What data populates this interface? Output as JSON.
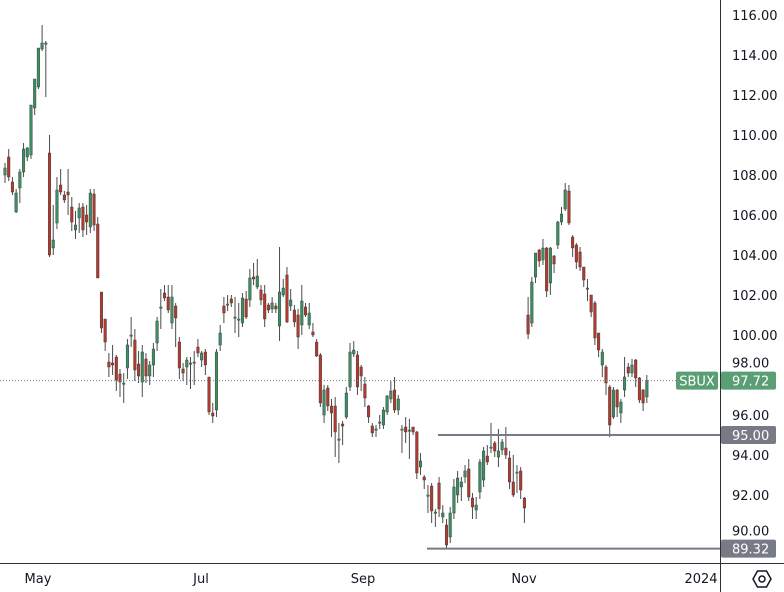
{
  "chart_data": {
    "type": "candlestick",
    "symbol": "SBUX",
    "last_price": "97.72",
    "y_ticks": [
      "116.00",
      "114.00",
      "112.00",
      "110.00",
      "108.00",
      "106.00",
      "104.00",
      "102.00",
      "100.00",
      "98.00",
      "96.00",
      "94.00",
      "92.00",
      "90.00"
    ],
    "ylim": [
      88.9,
      116.75
    ],
    "x_ticks": [
      "May",
      "Jul",
      "Sep",
      "Nov",
      "2024"
    ],
    "grid": false,
    "colors": {
      "up": "#3a8f62",
      "down": "#b03a2e",
      "wick": "#4a4a4a",
      "last_price": "#5a9e74",
      "level": "#787b86"
    },
    "levels": [
      {
        "value": 95.0,
        "label": "95.00"
      },
      {
        "value": 89.32,
        "label": "89.32"
      }
    ],
    "candles_ohlc": [
      [
        108.0,
        108.6,
        107.6,
        108.35
      ],
      [
        108.9,
        109.3,
        107.7,
        107.9
      ],
      [
        107.65,
        107.9,
        107.0,
        107.15
      ],
      [
        106.15,
        107.3,
        106.1,
        107.1
      ],
      [
        107.35,
        108.3,
        106.6,
        108.15
      ],
      [
        108.15,
        109.6,
        107.9,
        109.3
      ],
      [
        108.9,
        109.4,
        108.7,
        109.35
      ],
      [
        109.0,
        111.5,
        108.8,
        111.5
      ],
      [
        111.35,
        112.8,
        111.0,
        112.8
      ],
      [
        112.4,
        114.35,
        112.3,
        114.35
      ],
      [
        114.3,
        115.5,
        114.2,
        114.6
      ],
      [
        114.6,
        114.7,
        111.9,
        114.6
      ],
      [
        109.1,
        110.0,
        103.9,
        104.0
      ],
      [
        104.35,
        106.5,
        104.0,
        104.75
      ],
      [
        105.6,
        107.9,
        105.3,
        107.25
      ],
      [
        107.5,
        108.3,
        107.0,
        107.15
      ],
      [
        107.0,
        107.2,
        106.6,
        106.75
      ],
      [
        107.15,
        108.3,
        106.0,
        107.0
      ],
      [
        106.4,
        106.9,
        105.2,
        105.65
      ],
      [
        105.25,
        106.2,
        104.8,
        105.5
      ],
      [
        105.85,
        106.6,
        105.1,
        106.35
      ],
      [
        106.4,
        106.6,
        104.9,
        105.25
      ],
      [
        106.0,
        106.5,
        105.0,
        105.65
      ],
      [
        105.4,
        107.3,
        105.1,
        107.1
      ],
      [
        107.05,
        107.3,
        105.2,
        105.5
      ],
      [
        105.55,
        105.9,
        102.85,
        102.85
      ],
      [
        102.15,
        102.15,
        100.1,
        100.35
      ],
      [
        100.8,
        100.8,
        99.2,
        99.65
      ],
      [
        98.65,
        99.1,
        97.9,
        98.4
      ],
      [
        98.6,
        99.5,
        98.0,
        98.5
      ],
      [
        98.9,
        99.0,
        97.2,
        97.75
      ],
      [
        98.05,
        98.3,
        96.9,
        97.65
      ],
      [
        97.6,
        98.1,
        96.6,
        97.6
      ],
      [
        98.35,
        99.8,
        97.8,
        99.5
      ],
      [
        100.0,
        100.9,
        99.4,
        100.0
      ],
      [
        99.75,
        100.3,
        97.7,
        98.25
      ],
      [
        98.55,
        99.2,
        97.6,
        97.95
      ],
      [
        97.65,
        99.5,
        96.9,
        99.15
      ],
      [
        98.8,
        99.1,
        97.6,
        97.95
      ],
      [
        97.95,
        98.7,
        97.5,
        98.5
      ],
      [
        98.5,
        99.6,
        97.9,
        99.3
      ],
      [
        99.6,
        100.9,
        99.2,
        100.7
      ],
      [
        101.4,
        102.3,
        100.3,
        101.4
      ],
      [
        102.1,
        102.5,
        101.7,
        101.85
      ],
      [
        101.9,
        102.5,
        101.1,
        101.25
      ],
      [
        100.6,
        102.5,
        100.3,
        101.9
      ],
      [
        101.45,
        101.6,
        99.4,
        100.85
      ],
      [
        99.65,
        99.9,
        97.8,
        98.35
      ],
      [
        98.3,
        98.6,
        97.7,
        98.1
      ],
      [
        98.4,
        98.9,
        97.5,
        98.75
      ],
      [
        98.6,
        98.9,
        97.3,
        98.6
      ],
      [
        98.65,
        99.2,
        97.5,
        98.65
      ],
      [
        99.4,
        99.8,
        98.9,
        99.1
      ],
      [
        98.75,
        99.2,
        98.4,
        99.1
      ],
      [
        99.15,
        99.3,
        98.0,
        98.5
      ],
      [
        97.9,
        97.9,
        96.0,
        96.15
      ],
      [
        96.1,
        96.6,
        95.6,
        95.95
      ],
      [
        96.25,
        99.3,
        95.9,
        99.15
      ],
      [
        99.5,
        100.5,
        99.2,
        100.1
      ],
      [
        101.45,
        101.9,
        100.6,
        101.1
      ],
      [
        101.55,
        102.0,
        101.2,
        101.55
      ],
      [
        101.8,
        102.0,
        101.4,
        101.6
      ],
      [
        100.9,
        101.9,
        100.1,
        100.9
      ],
      [
        100.8,
        101.6,
        99.9,
        100.8
      ],
      [
        100.6,
        102.1,
        100.4,
        101.85
      ],
      [
        101.8,
        102.2,
        100.8,
        100.9
      ],
      [
        101.75,
        103.3,
        101.4,
        102.85
      ],
      [
        102.9,
        103.6,
        102.5,
        102.8
      ],
      [
        102.4,
        103.8,
        102.3,
        102.95
      ],
      [
        102.25,
        102.5,
        101.5,
        101.75
      ],
      [
        102.05,
        102.5,
        100.4,
        100.8
      ],
      [
        101.5,
        101.6,
        101.1,
        101.25
      ],
      [
        101.3,
        101.9,
        101.1,
        101.6
      ],
      [
        101.45,
        101.6,
        101.1,
        101.3
      ],
      [
        100.45,
        104.4,
        99.7,
        102.15
      ],
      [
        102.0,
        102.8,
        101.9,
        102.35
      ],
      [
        103.0,
        103.4,
        100.6,
        100.65
      ],
      [
        101.45,
        102.3,
        101.2,
        101.75
      ],
      [
        101.25,
        101.5,
        100.4,
        100.65
      ],
      [
        101.0,
        101.3,
        99.3,
        99.9
      ],
      [
        100.5,
        102.5,
        100.0,
        101.7
      ],
      [
        101.4,
        101.6,
        100.9,
        101.0
      ],
      [
        100.5,
        101.6,
        100.3,
        101.1
      ],
      [
        100.15,
        100.6,
        99.9,
        100.0
      ],
      [
        99.65,
        99.8,
        98.9,
        98.95
      ],
      [
        99.0,
        99.1,
        96.4,
        96.6
      ],
      [
        96.0,
        97.5,
        95.6,
        97.25
      ],
      [
        97.35,
        97.5,
        96.2,
        96.45
      ],
      [
        96.45,
        96.8,
        94.9,
        96.1
      ],
      [
        96.45,
        96.9,
        93.9,
        95.15
      ],
      [
        94.8,
        95.6,
        93.6,
        94.8
      ],
      [
        95.55,
        95.7,
        94.5,
        95.45
      ],
      [
        95.9,
        97.4,
        95.8,
        97.1
      ],
      [
        97.4,
        99.6,
        97.2,
        99.15
      ],
      [
        99.05,
        99.7,
        98.9,
        99.25
      ],
      [
        99.0,
        99.2,
        97.0,
        97.4
      ],
      [
        98.4,
        98.5,
        97.2,
        97.95
      ],
      [
        97.55,
        97.9,
        96.4,
        96.85
      ],
      [
        96.45,
        96.5,
        95.6,
        95.9
      ],
      [
        95.45,
        95.6,
        94.9,
        95.1
      ],
      [
        95.3,
        95.5,
        94.9,
        95.3
      ],
      [
        95.65,
        96.0,
        95.3,
        95.65
      ],
      [
        95.5,
        96.4,
        95.3,
        96.25
      ],
      [
        96.15,
        97.0,
        96.0,
        96.95
      ],
      [
        96.8,
        97.7,
        96.6,
        97.2
      ],
      [
        97.25,
        97.9,
        96.1,
        96.25
      ],
      [
        96.25,
        97.0,
        96.0,
        96.8
      ],
      [
        95.3,
        95.5,
        94.1,
        95.3
      ],
      [
        95.4,
        95.9,
        94.6,
        95.15
      ],
      [
        95.25,
        95.8,
        93.8,
        95.25
      ],
      [
        95.4,
        95.4,
        95.0,
        95.15
      ],
      [
        95.15,
        95.2,
        92.8,
        93.1
      ],
      [
        93.4,
        94.1,
        93.0,
        93.7
      ],
      [
        92.9,
        93.0,
        92.3,
        92.75
      ],
      [
        92.0,
        92.5,
        91.1,
        92.0
      ],
      [
        92.45,
        92.6,
        90.6,
        91.2
      ],
      [
        91.15,
        91.3,
        90.4,
        91.15
      ],
      [
        92.6,
        92.9,
        90.9,
        91.3
      ],
      [
        90.9,
        91.5,
        90.6,
        91.1
      ],
      [
        90.5,
        90.8,
        89.3,
        89.5
      ],
      [
        89.9,
        91.4,
        89.6,
        91.1
      ],
      [
        91.1,
        92.8,
        90.8,
        92.4
      ],
      [
        92.0,
        93.2,
        91.6,
        92.85
      ],
      [
        92.4,
        92.9,
        91.7,
        92.65
      ],
      [
        92.9,
        93.5,
        92.6,
        93.2
      ],
      [
        93.3,
        93.8,
        91.7,
        91.9
      ],
      [
        91.85,
        92.1,
        90.8,
        91.4
      ],
      [
        91.25,
        91.9,
        90.8,
        91.5
      ],
      [
        92.15,
        93.8,
        91.8,
        93.65
      ],
      [
        92.75,
        94.4,
        92.4,
        94.2
      ],
      [
        93.95,
        94.5,
        93.5,
        93.65
      ],
      [
        94.4,
        95.6,
        94.1,
        94.4
      ],
      [
        94.6,
        94.7,
        93.9,
        94.2
      ],
      [
        93.9,
        95.3,
        93.4,
        94.2
      ],
      [
        94.25,
        94.8,
        94.0,
        94.65
      ],
      [
        94.35,
        95.4,
        93.8,
        94.0
      ],
      [
        93.85,
        94.2,
        92.3,
        92.65
      ],
      [
        92.65,
        94.0,
        91.9,
        92.0
      ],
      [
        93.15,
        93.5,
        92.1,
        93.15
      ],
      [
        93.2,
        93.4,
        91.8,
        92.25
      ],
      [
        91.85,
        91.9,
        90.6,
        91.35
      ],
      [
        101.0,
        101.9,
        99.8,
        100.05
      ],
      [
        100.6,
        102.9,
        100.4,
        102.65
      ],
      [
        102.9,
        104.1,
        102.6,
        104.1
      ],
      [
        104.25,
        104.3,
        103.4,
        103.7
      ],
      [
        103.75,
        104.8,
        103.5,
        104.35
      ],
      [
        104.35,
        104.4,
        101.9,
        102.2
      ],
      [
        102.6,
        104.4,
        102.0,
        104.35
      ],
      [
        103.95,
        104.0,
        103.1,
        103.55
      ],
      [
        104.5,
        105.7,
        104.3,
        105.65
      ],
      [
        105.65,
        106.4,
        105.5,
        106.05
      ],
      [
        106.3,
        107.6,
        106.2,
        107.25
      ],
      [
        107.2,
        107.5,
        105.5,
        105.6
      ],
      [
        104.9,
        105.0,
        103.9,
        104.35
      ],
      [
        104.5,
        104.6,
        103.3,
        103.65
      ],
      [
        104.15,
        104.4,
        103.2,
        103.4
      ],
      [
        103.4,
        103.4,
        102.4,
        102.75
      ],
      [
        102.3,
        102.8,
        101.7,
        102.35
      ],
      [
        102.0,
        102.0,
        100.9,
        101.15
      ],
      [
        101.6,
        101.7,
        99.5,
        99.85
      ],
      [
        100.1,
        100.1,
        98.9,
        99.25
      ],
      [
        98.5,
        99.3,
        97.9,
        99.15
      ],
      [
        98.4,
        98.5,
        97.0,
        97.6
      ],
      [
        97.4,
        97.5,
        94.9,
        95.5
      ],
      [
        95.9,
        97.4,
        95.8,
        97.25
      ],
      [
        97.25,
        97.3,
        95.9,
        96.4
      ],
      [
        96.1,
        96.8,
        95.6,
        96.65
      ],
      [
        97.25,
        98.9,
        96.9,
        97.9
      ],
      [
        98.4,
        98.6,
        97.9,
        98.1
      ],
      [
        98.1,
        98.8,
        97.9,
        98.5
      ],
      [
        98.75,
        98.8,
        97.4,
        97.85
      ],
      [
        97.85,
        97.9,
        96.6,
        96.75
      ],
      [
        97.25,
        97.3,
        96.2,
        96.6
      ],
      [
        96.9,
        98.0,
        96.6,
        97.72
      ]
    ]
  },
  "toolbar": {
    "settings_icon": "settings-hexagon-icon"
  }
}
